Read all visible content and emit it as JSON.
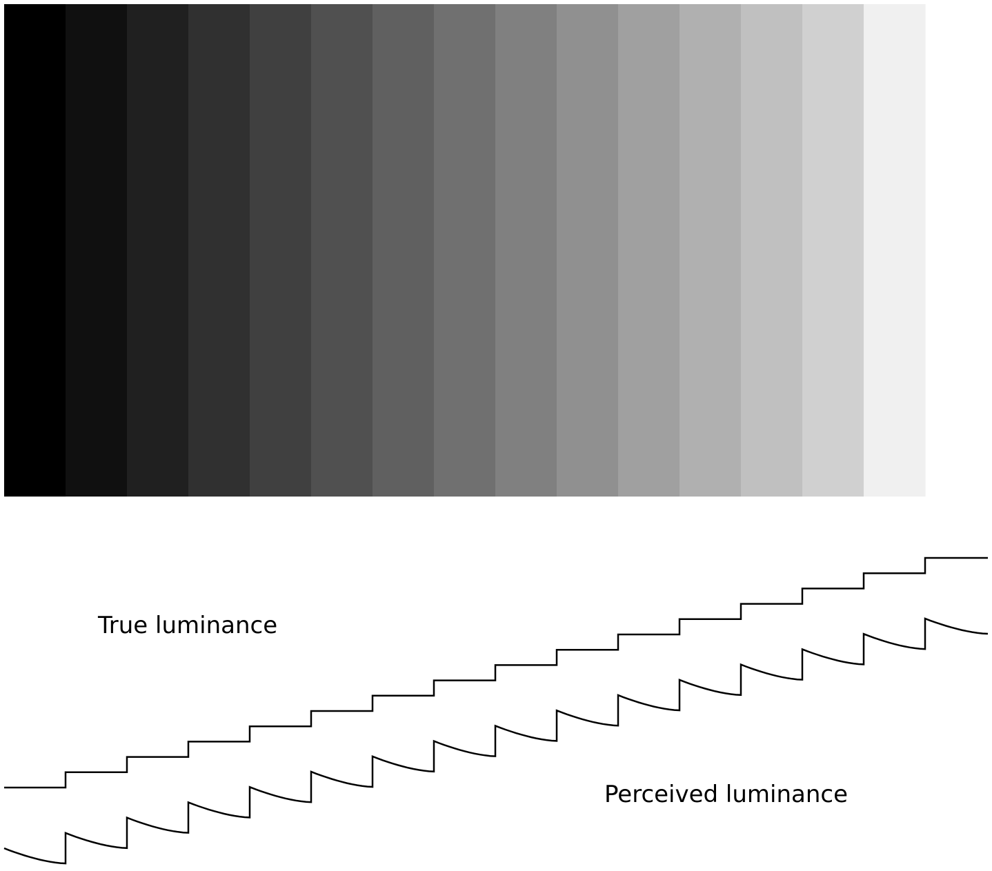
{
  "labels": {
    "true_luminance": "True luminance",
    "perceived_luminance": "Perceived luminance"
  },
  "bands": {
    "count": 15,
    "colors": [
      "#000000",
      "#101010",
      "#202020",
      "#303030",
      "#404040",
      "#505050",
      "#606060",
      "#707070",
      "#808080",
      "#909090",
      "#a0a0a0",
      "#b0b0b0",
      "#c0c0c0",
      "#d0d0d0",
      "#f0f0f0"
    ]
  },
  "line_color": "#000000"
}
